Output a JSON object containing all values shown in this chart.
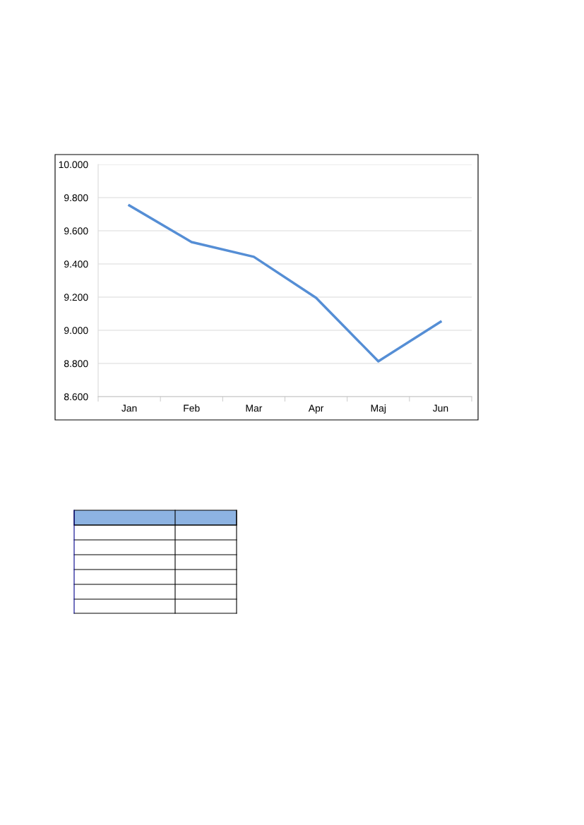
{
  "chart_data": {
    "type": "line",
    "categories": [
      "Jan",
      "Feb",
      "Mar",
      "Apr",
      "Maj",
      "Jun"
    ],
    "series": [
      {
        "color": "#558ed5",
        "values": [
          9.753,
          9.532,
          9.443,
          9.196,
          8.813,
          9.051
        ]
      }
    ],
    "ylim": [
      8.6,
      10.0
    ],
    "yticks": [
      {
        "value": 8.6,
        "label": "8.600"
      },
      {
        "value": 8.8,
        "label": "8.800"
      },
      {
        "value": 9.0,
        "label": "9.000"
      },
      {
        "value": 9.2,
        "label": "9.200"
      },
      {
        "value": 9.4,
        "label": "9.400"
      },
      {
        "value": 9.6,
        "label": "9.600"
      },
      {
        "value": 9.8,
        "label": "9.800"
      },
      {
        "value": 10.0,
        "label": "10.000"
      }
    ],
    "grid": "y",
    "marker": "none",
    "line_style": "solid"
  }
}
